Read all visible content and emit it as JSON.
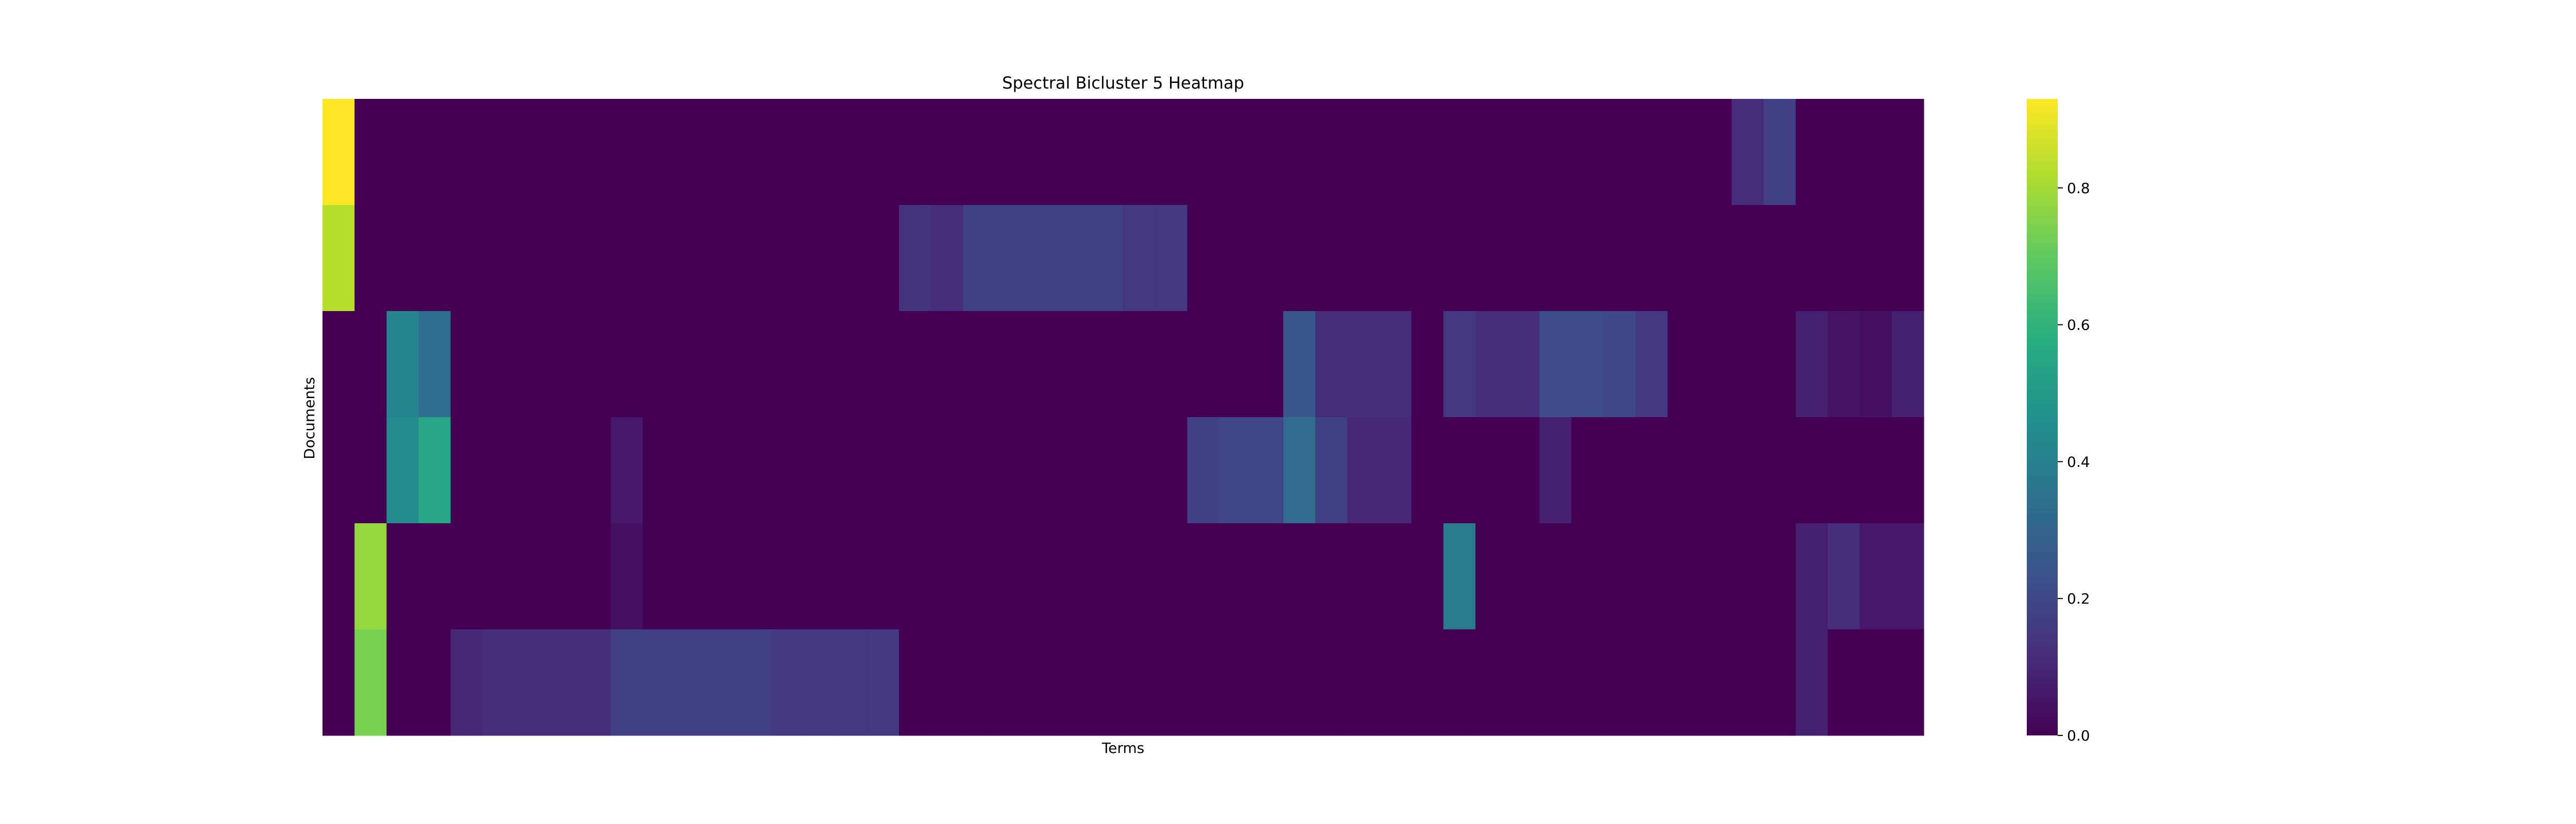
{
  "chart_data": {
    "type": "heatmap",
    "title": "Spectral Bicluster 5 Heatmap",
    "xlabel": "Terms",
    "ylabel": "Documents",
    "colormap": "viridis",
    "vmin": 0.0,
    "vmax": 0.93,
    "colorbar_ticks": [
      "0.0",
      "0.2",
      "0.4",
      "0.6",
      "0.8"
    ],
    "colorbar_tick_values": [
      0.0,
      0.2,
      0.4,
      0.6,
      0.8
    ],
    "values": [
      [
        0.93,
        0,
        0,
        0,
        0,
        0,
        0,
        0,
        0,
        0,
        0,
        0,
        0,
        0,
        0,
        0,
        0,
        0,
        0,
        0,
        0,
        0,
        0,
        0,
        0,
        0,
        0,
        0,
        0,
        0,
        0,
        0,
        0,
        0,
        0,
        0,
        0,
        0,
        0,
        0,
        0,
        0,
        0,
        0,
        0.12,
        0.18,
        0,
        0,
        0,
        0
      ],
      [
        0.83,
        0,
        0,
        0,
        0,
        0,
        0,
        0,
        0,
        0,
        0,
        0,
        0,
        0,
        0,
        0,
        0,
        0,
        0.14,
        0.12,
        0.18,
        0.18,
        0.18,
        0.18,
        0.18,
        0.15,
        0.15,
        0,
        0,
        0,
        0,
        0,
        0,
        0,
        0,
        0,
        0,
        0,
        0,
        0,
        0,
        0,
        0,
        0,
        0,
        0,
        0,
        0,
        0,
        0
      ],
      [
        0,
        0,
        0.42,
        0.33,
        0,
        0,
        0,
        0,
        0,
        0,
        0,
        0,
        0,
        0,
        0,
        0,
        0,
        0,
        0,
        0,
        0,
        0,
        0,
        0,
        0,
        0,
        0,
        0,
        0,
        0,
        0.25,
        0.12,
        0.12,
        0.12,
        0,
        0.15,
        0.12,
        0.12,
        0.22,
        0.22,
        0.2,
        0.15,
        0,
        0,
        0,
        0,
        0.08,
        0.05,
        0.04,
        0.08
      ],
      [
        0,
        0,
        0.45,
        0.55,
        0,
        0,
        0,
        0,
        0,
        0.06,
        0,
        0,
        0,
        0,
        0,
        0,
        0,
        0,
        0,
        0,
        0,
        0,
        0,
        0,
        0,
        0,
        0,
        0.18,
        0.2,
        0.2,
        0.32,
        0.18,
        0.1,
        0.1,
        0,
        0,
        0,
        0,
        0.08,
        0,
        0,
        0,
        0,
        0,
        0,
        0,
        0,
        0,
        0,
        0
      ],
      [
        0,
        0.78,
        0,
        0,
        0,
        0,
        0,
        0,
        0,
        0.04,
        0,
        0,
        0,
        0,
        0,
        0,
        0,
        0,
        0,
        0,
        0,
        0,
        0,
        0,
        0,
        0,
        0,
        0,
        0,
        0,
        0,
        0,
        0,
        0,
        0,
        0.38,
        0,
        0,
        0,
        0,
        0,
        0,
        0,
        0,
        0,
        0,
        0.08,
        0.12,
        0.06,
        0.06
      ],
      [
        0,
        0.74,
        0,
        0,
        0.1,
        0.12,
        0.12,
        0.12,
        0.12,
        0.18,
        0.18,
        0.18,
        0.18,
        0.18,
        0.15,
        0.15,
        0.15,
        0.15,
        0,
        0,
        0,
        0,
        0,
        0,
        0,
        0,
        0,
        0,
        0,
        0,
        0,
        0,
        0,
        0,
        0,
        0,
        0,
        0,
        0,
        0,
        0,
        0,
        0,
        0,
        0,
        0,
        0.08,
        0,
        0,
        0
      ]
    ]
  }
}
